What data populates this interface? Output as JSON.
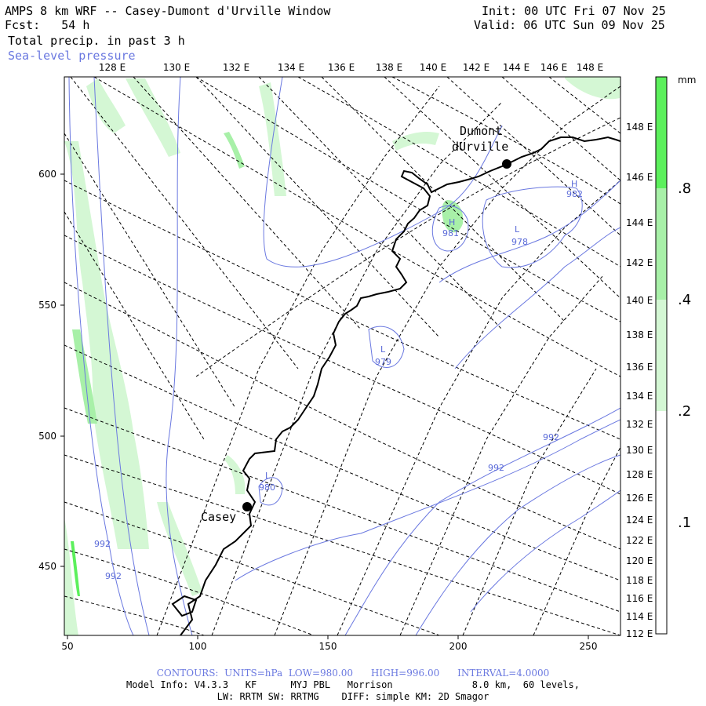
{
  "header": {
    "title": "AMPS 8 km WRF -- Casey-Dumont d'Urville Window",
    "fcst_label": "Fcst:",
    "fcst_value": "54 h",
    "field1": "Total precip. in past 3 h",
    "field2": "Sea-level pressure",
    "init": "Init: 00 UTC Fri 07 Nov 25",
    "valid": "Valid: 06 UTC Sun 09 Nov 25"
  },
  "axes": {
    "x_ticks": [
      "50",
      "100",
      "150",
      "200",
      "250"
    ],
    "y_ticks": [
      "600",
      "550",
      "500",
      "450"
    ],
    "top_lon": [
      "128 E",
      "130 E",
      "132 E",
      "134 E",
      "136 E",
      "138 E",
      "140 E",
      "142 E",
      "144 E",
      "146 E",
      "148 E"
    ],
    "right_lon": [
      "148 E",
      "146 E",
      "144 E",
      "142 E",
      "140 E",
      "138 E",
      "136 E",
      "134 E",
      "132 E",
      "130 E",
      "128 E",
      "126 E",
      "124 E",
      "122 E",
      "120 E",
      "118 E",
      "116 E",
      "114 E",
      "112 E"
    ]
  },
  "legend": {
    "unit": "mm",
    "labels": [
      ".8",
      ".4",
      ".2",
      ".1"
    ],
    "colors": [
      "#5cf05c",
      "#a8f0a8",
      "#d4f7d4",
      "#ffffff"
    ]
  },
  "places": {
    "dumont1": "Dumont",
    "dumont2": "dUrville",
    "casey": "Casey"
  },
  "pressure_labels": [
    {
      "letter": "H",
      "value": "982"
    },
    {
      "letter": "H",
      "value": "981"
    },
    {
      "letter": "L",
      "value": "978"
    },
    {
      "letter": "L",
      "value": "979"
    },
    {
      "letter": "L",
      "value": "980"
    }
  ],
  "isobar_values": [
    "992",
    "992",
    "992",
    "992"
  ],
  "footer": {
    "contours_label": "CONTOURS:",
    "units": "UNITS=hPa",
    "low": "LOW=",
    "low_val": "980.00",
    "high": "HIGH=",
    "high_val": "996.00",
    "interval": "INTERVAL=",
    "interval_val": "4.0000",
    "model_info": "Model Info: V4.3.3   KF      MYJ PBL   Morrison              8.0 km,  60 levels,",
    "physics": "LW: RRTM SW: RRTMG    DIFF: simple KM: 2D Smagor"
  },
  "colors": {
    "precip_light": "#d4f7d4",
    "precip_mid": "#a8f0a8",
    "precip_strong": "#5cf05c",
    "isobar": "#6a78e0",
    "coast": "#000000"
  }
}
